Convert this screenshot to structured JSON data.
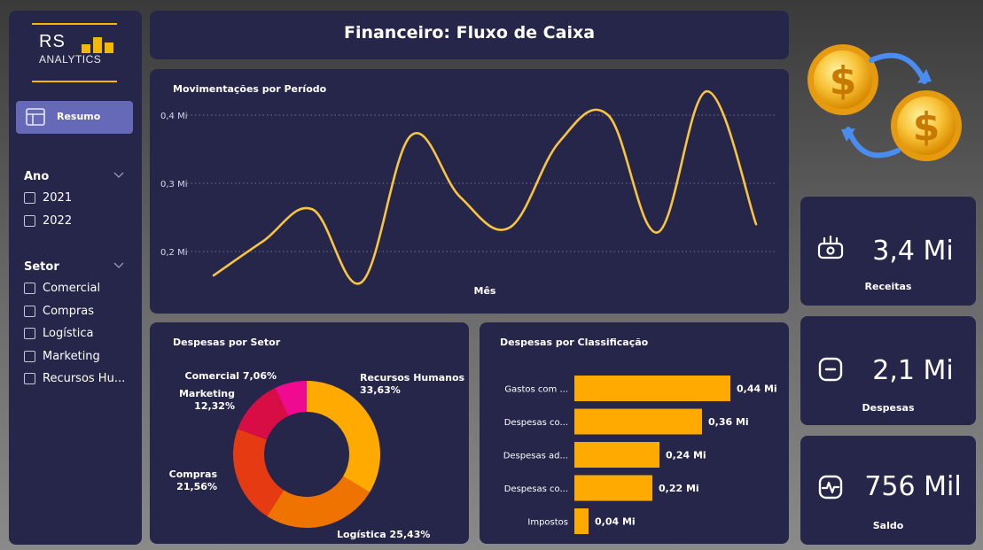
{
  "header": {
    "title": "Financeiro: Fluxo de Caixa"
  },
  "logo": {
    "line1": "RS",
    "line2": "ANALYTICS"
  },
  "sidebar": {
    "resumo_label": "Resumo",
    "ano_title": "Ano",
    "ano_options": [
      "2021",
      "2022"
    ],
    "setor_title": "Setor",
    "setor_options": [
      "Comercial",
      "Compras",
      "Logística",
      "Marketing",
      "Recursos Hu..."
    ]
  },
  "kpis": [
    {
      "value": "3,4 Mi",
      "label": "Receitas",
      "icon": "money-icon"
    },
    {
      "value": "2,1 Mi",
      "label": "Despesas",
      "icon": "minus-icon"
    },
    {
      "value": "756 Mil",
      "label": "Saldo",
      "icon": "pulse-icon"
    }
  ],
  "colors": {
    "panel": "#25264a",
    "accent": "#f5b800",
    "button": "#6669b8",
    "line": "#f9c440"
  },
  "chart_data": [
    {
      "type": "line",
      "title": "Movimentações por Período",
      "xlabel": "Mês",
      "ylabel": "",
      "yticks": [
        "0,2 Mi",
        "0,3 Mi",
        "0,4 Mi"
      ],
      "ylim": [
        0.15,
        0.43
      ],
      "grid": true,
      "series": [
        {
          "values": [
            0.165,
            0.215,
            0.262,
            0.155,
            0.37,
            0.28,
            0.235,
            0.36,
            0.4,
            0.228,
            0.435,
            0.24
          ]
        }
      ]
    },
    {
      "type": "pie",
      "title": "Despesas por Setor",
      "categories": [
        "Recursos Humanos",
        "Logística",
        "Compras",
        "Marketing",
        "Comercial"
      ],
      "values": [
        33.63,
        25.43,
        21.56,
        12.32,
        7.06
      ],
      "value_labels": [
        "33,63%",
        "25,43%",
        "21,56%",
        "12,32%",
        "7,06%"
      ],
      "colors": [
        "#ffaa00",
        "#ef7300",
        "#e53a12",
        "#d80d46",
        "#ef0a8f"
      ]
    },
    {
      "type": "bar",
      "title": "Despesas por Classificação",
      "categories": [
        "Gastos com ...",
        "Despesas co...",
        "Despesas ad...",
        "Despesas co...",
        "Impostos"
      ],
      "values": [
        0.44,
        0.36,
        0.24,
        0.22,
        0.04
      ],
      "value_labels": [
        "0,44 Mi",
        "0,36 Mi",
        "0,24 Mi",
        "0,22 Mi",
        "0,04 Mi"
      ],
      "color": "#ffaa00"
    }
  ]
}
